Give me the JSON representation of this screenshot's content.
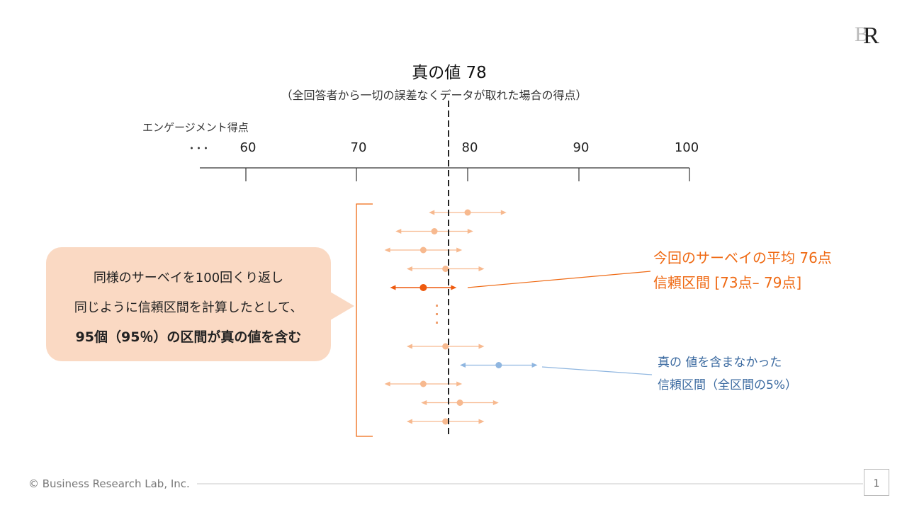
{
  "header": {
    "title": "真の値 78",
    "subtitle": "（全回答者から一切の誤差なくデータが取れた場合の得点）"
  },
  "axis": {
    "label": "エンゲージメント得点",
    "ellipsis": "･･･",
    "ticks": [
      "60",
      "70",
      "80",
      "90",
      "100"
    ]
  },
  "bubble": {
    "line1": "同様のサーベイを100回くり返し",
    "line2": "同じように信頼区間を計算したとして、",
    "line3": "95個（95％）の区間が真の値を含む"
  },
  "callout_orange": {
    "line1": "今回のサーベイの平均 76点",
    "line2": "信頼区間 [73点– 79点]"
  },
  "callout_blue": {
    "line1": "真の 値を含まなかった",
    "line2": "信頼区間（全区間の5%）"
  },
  "footer": {
    "copyright": "© Business Research Lab, Inc.",
    "page_number": "1"
  },
  "colors": {
    "interval_light": "#f7b98f",
    "interval_current": "#ee5a0e",
    "interval_miss": "#8fb6e0",
    "accent_orange": "#ef6a14",
    "accent_blue": "#3b6aa0"
  },
  "chart_data": {
    "type": "interval",
    "true_value": 78,
    "intervals_above": [
      {
        "mean": 80,
        "lower": 76.5,
        "upper": 83.5,
        "kind": "normal"
      },
      {
        "mean": 77,
        "lower": 73.5,
        "upper": 80.5,
        "kind": "normal"
      },
      {
        "mean": 76,
        "lower": 72.5,
        "upper": 79.5,
        "kind": "normal"
      },
      {
        "mean": 78,
        "lower": 74.5,
        "upper": 81.5,
        "kind": "normal"
      },
      {
        "mean": 76,
        "lower": 73,
        "upper": 79,
        "kind": "current"
      }
    ],
    "intervals_below": [
      {
        "mean": 78,
        "lower": 74.5,
        "upper": 81.5,
        "kind": "normal"
      },
      {
        "mean": 82.8,
        "lower": 79.3,
        "upper": 86.3,
        "kind": "miss"
      },
      {
        "mean": 76,
        "lower": 72.5,
        "upper": 79.5,
        "kind": "normal"
      },
      {
        "mean": 79.3,
        "lower": 75.8,
        "upper": 82.8,
        "kind": "normal"
      },
      {
        "mean": 78,
        "lower": 74.5,
        "upper": 81.5,
        "kind": "normal"
      }
    ]
  }
}
